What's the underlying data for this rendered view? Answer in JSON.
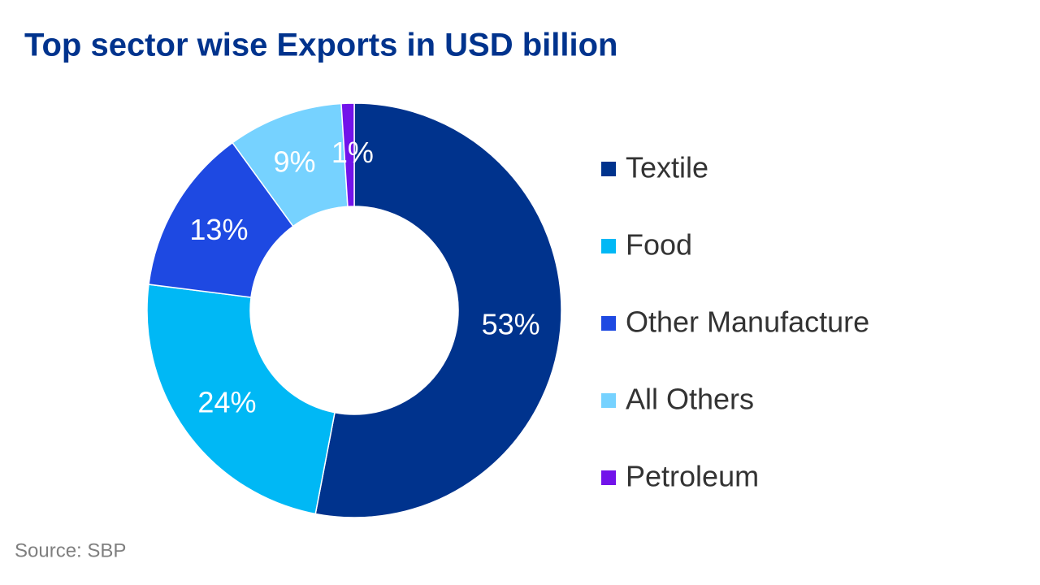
{
  "chart_data": {
    "type": "donut",
    "title": "Top sector wise Exports in USD billion",
    "categories": [
      "Textile",
      "Food",
      "Other Manufacture",
      "All Others",
      "Petroleum"
    ],
    "values": [
      53,
      24,
      13,
      9,
      1
    ],
    "value_labels": [
      "53%",
      "24%",
      "13%",
      "9%",
      "1%"
    ],
    "colors": [
      "#00338d",
      "#00b8f5",
      "#1e49e2",
      "#76d2ff",
      "#7213ea"
    ],
    "legend": "right",
    "source": "Source: SBP"
  }
}
